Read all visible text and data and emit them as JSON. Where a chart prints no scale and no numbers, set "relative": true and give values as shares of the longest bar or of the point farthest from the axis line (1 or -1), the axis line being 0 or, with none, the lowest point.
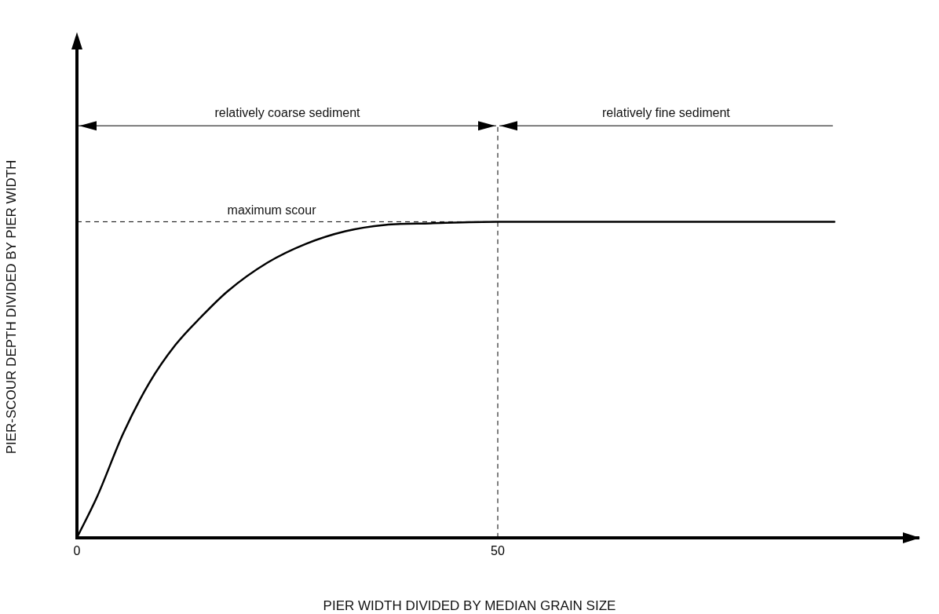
{
  "chart_data": {
    "type": "line",
    "xlabel": "PIER WIDTH DIVIDED BY MEDIAN GRAIN SIZE",
    "ylabel": "PIER-SCOUR DEPTH DIVIDED BY PIER WIDTH",
    "relative": true,
    "x": [
      0,
      2.4,
      5.5,
      8.6,
      11.7,
      14.8,
      17.9,
      22.6,
      27.2,
      31.9,
      36.6,
      42,
      50,
      60,
      75,
      90
    ],
    "series": [
      {
        "color": "#000000",
        "values": [
          0,
          0.13,
          0.33,
          0.49,
          0.61,
          0.7,
          0.78,
          0.87,
          0.93,
          0.97,
          0.99,
          0.995,
          1,
          1,
          1,
          1
        ]
      }
    ],
    "xlim": [
      0,
      100
    ],
    "xticks": [
      0,
      50
    ],
    "grid": false,
    "legend": false,
    "marker": "none",
    "line_style": "solid",
    "ref_lines": [
      {
        "axis": "y",
        "value": 1,
        "label": "maximum scour",
        "line_style": "dashed"
      },
      {
        "axis": "x",
        "value": 50,
        "line_style": "dashed"
      }
    ],
    "annotations": [
      "relatively coarse sediment",
      "relatively fine sediment"
    ]
  }
}
